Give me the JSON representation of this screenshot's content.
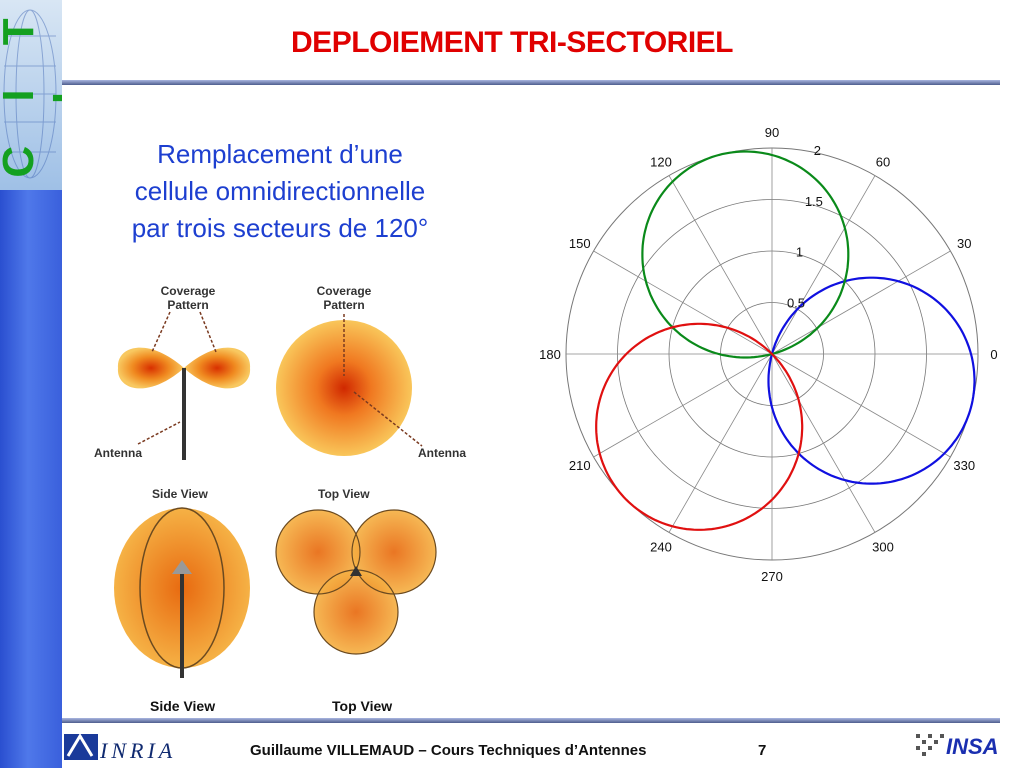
{
  "slide": {
    "title": "DEPLOIEMENT TRI-SECTORIEL",
    "subtitle_lines": [
      "Remplacement d’une",
      "cellule omnidirectionnelle",
      "par trois secteurs de 120°"
    ],
    "page_number": "7"
  },
  "sidebar": {
    "logo_text": "C I T I"
  },
  "diagram": {
    "labels": {
      "coverage_left": "Coverage\nPattern",
      "coverage_right": "Coverage\nPattern",
      "antenna_left": "Antenna",
      "antenna_right": "Antenna",
      "side_view_small": "Side View",
      "top_view_small": "Top View",
      "side_view_bottom": "Side View",
      "top_view_bottom": "Top View"
    }
  },
  "footer": {
    "author_text": "Guillaume VILLEMAUD – Cours Techniques d’Antennes",
    "inria_logo_text": "INRIA",
    "insa_logo_text": "INSA"
  },
  "chart_data": {
    "type": "polar-line",
    "angle_labels": [
      "0",
      "30",
      "60",
      "90",
      "120",
      "150",
      "180",
      "210",
      "240",
      "270",
      "300",
      "330"
    ],
    "radial_ticks": [
      "0.5",
      "1",
      "1.5",
      "2"
    ],
    "rmax": 2,
    "series": [
      {
        "color": "#1010e0",
        "center_angle_deg": -15,
        "r_max": 2,
        "shape": "cos^2 lobe, 120° sector"
      },
      {
        "color": "#0a8a1a",
        "center_angle_deg": 105,
        "r_max": 2,
        "shape": "cos^2 lobe, 120° sector"
      },
      {
        "color": "#e01010",
        "center_angle_deg": 225,
        "r_max": 2,
        "shape": "cos^2 lobe, 120° sector"
      }
    ]
  }
}
